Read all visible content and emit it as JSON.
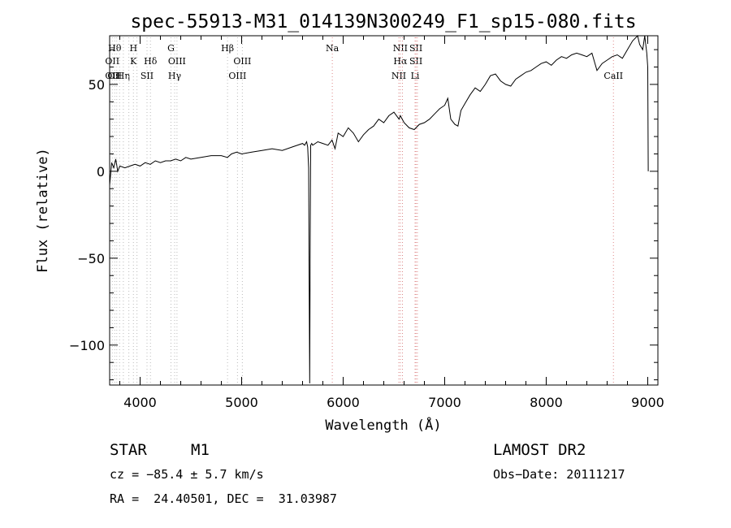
{
  "chart_data": {
    "type": "line",
    "title": "spec-55913-M31_014139N300249_F1_sp15-080.fits",
    "xlabel": "Wavelength (Å)",
    "ylabel": "Flux (relative)",
    "xlim": [
      3700,
      9100
    ],
    "ylim": [
      -123,
      78
    ],
    "x_ticks": [
      4000,
      5000,
      6000,
      7000,
      8000,
      9000
    ],
    "y_ticks": [
      -100,
      -50,
      0,
      50
    ],
    "x_tick_labels": [
      "4000",
      "5000",
      "6000",
      "7000",
      "8000",
      "9000"
    ],
    "y_tick_labels": [
      "−100",
      "−50",
      "0",
      "50"
    ],
    "grid": false,
    "series": [
      {
        "color": "#000000",
        "x": [
          3700,
          3720,
          3740,
          3760,
          3780,
          3800,
          3850,
          3900,
          3950,
          4000,
          4050,
          4100,
          4150,
          4200,
          4250,
          4300,
          4350,
          4400,
          4450,
          4500,
          4600,
          4700,
          4800,
          4860,
          4900,
          4950,
          5000,
          5100,
          5200,
          5300,
          5400,
          5500,
          5600,
          5620,
          5640,
          5650,
          5660,
          5665,
          5670,
          5675,
          5680,
          5690,
          5700,
          5750,
          5800,
          5850,
          5890,
          5920,
          5950,
          6000,
          6050,
          6100,
          6150,
          6200,
          6250,
          6300,
          6350,
          6400,
          6450,
          6500,
          6550,
          6563,
          6600,
          6650,
          6700,
          6750,
          6800,
          6850,
          6900,
          6950,
          7000,
          7030,
          7060,
          7100,
          7130,
          7160,
          7200,
          7250,
          7300,
          7350,
          7400,
          7450,
          7500,
          7550,
          7600,
          7650,
          7700,
          7750,
          7800,
          7850,
          7900,
          7950,
          8000,
          8050,
          8100,
          8150,
          8200,
          8250,
          8300,
          8350,
          8400,
          8450,
          8500,
          8550,
          8600,
          8650,
          8700,
          8750,
          8800,
          8850,
          8900,
          8920,
          8950,
          8970,
          8990,
          9000,
          9005
        ],
        "y": [
          -8,
          5,
          2,
          7,
          0,
          3,
          2,
          3,
          4,
          3,
          5,
          4,
          6,
          5,
          6,
          6,
          7,
          6,
          8,
          7,
          8,
          9,
          9,
          8,
          10,
          11,
          10,
          11,
          12,
          13,
          12,
          14,
          16,
          15,
          17,
          14,
          2,
          -60,
          -122,
          -40,
          15,
          16,
          15,
          17,
          16,
          15,
          18,
          13,
          22,
          20,
          25,
          22,
          17,
          21,
          24,
          26,
          30,
          28,
          32,
          34,
          30,
          32,
          28,
          25,
          24,
          27,
          28,
          30,
          33,
          36,
          38,
          42,
          30,
          27,
          26,
          35,
          39,
          44,
          48,
          46,
          50,
          55,
          56,
          52,
          50,
          49,
          53,
          55,
          57,
          58,
          60,
          62,
          63,
          61,
          64,
          66,
          65,
          67,
          68,
          67,
          66,
          68,
          58,
          62,
          64,
          66,
          67,
          65,
          70,
          75,
          78,
          73,
          70,
          78,
          68,
          60,
          0
        ]
      }
    ],
    "lines": [
      {
        "x": 3726,
        "labels": [
          "",
          "OII",
          "OII"
        ],
        "color": "#bbbbbb"
      },
      {
        "x": 3750,
        "labels": [
          "Hθ",
          "",
          "OII"
        ],
        "color": "#bbbbbb"
      },
      {
        "x": 3770,
        "labels": [
          "",
          "",
          ""
        ],
        "color": "#bbbbbb"
      },
      {
        "x": 3798,
        "labels": [
          "",
          "",
          ""
        ],
        "color": "#bbbbbb"
      },
      {
        "x": 3835,
        "labels": [
          "",
          "",
          "Hη"
        ],
        "color": "#bbbbbb"
      },
      {
        "x": 3889,
        "labels": [
          "",
          "",
          ""
        ],
        "color": "#bbbbbb"
      },
      {
        "x": 3934,
        "labels": [
          "H",
          "K",
          ""
        ],
        "color": "#bbbbbb"
      },
      {
        "x": 3969,
        "labels": [
          "",
          "",
          ""
        ],
        "color": "#bbbbbb"
      },
      {
        "x": 4068,
        "labels": [
          "",
          "",
          "SII"
        ],
        "color": "#bbbbbb"
      },
      {
        "x": 4102,
        "labels": [
          "",
          "Hδ",
          ""
        ],
        "color": "#bbbbbb"
      },
      {
        "x": 4304,
        "labels": [
          "G",
          "",
          ""
        ],
        "color": "#bbbbbb"
      },
      {
        "x": 4340,
        "labels": [
          "",
          "",
          "Hγ"
        ],
        "color": "#bbbbbb"
      },
      {
        "x": 4363,
        "labels": [
          "",
          "OIII",
          ""
        ],
        "color": "#bbbbbb"
      },
      {
        "x": 4861,
        "labels": [
          "Hβ",
          "",
          ""
        ],
        "color": "#bbbbbb"
      },
      {
        "x": 4959,
        "labels": [
          "",
          "",
          "OIII"
        ],
        "color": "#bbbbbb"
      },
      {
        "x": 5007,
        "labels": [
          "",
          "OIII",
          ""
        ],
        "color": "#bbbbbb"
      },
      {
        "x": 5893,
        "labels": [
          "Na",
          "",
          ""
        ],
        "color": "#dd8888"
      },
      {
        "x": 6548,
        "labels": [
          "",
          "",
          "NII"
        ],
        "color": "#dd8888"
      },
      {
        "x": 6563,
        "labels": [
          "NII",
          "Hα",
          ""
        ],
        "color": "#dd8888"
      },
      {
        "x": 6584,
        "labels": [
          "",
          "",
          ""
        ],
        "color": "#dd8888"
      },
      {
        "x": 6708,
        "labels": [
          "",
          "",
          "Li"
        ],
        "color": "#dd8888"
      },
      {
        "x": 6717,
        "labels": [
          "SII",
          "SII",
          ""
        ],
        "color": "#dd8888"
      },
      {
        "x": 6731,
        "labels": [
          "",
          "",
          ""
        ],
        "color": "#dd8888"
      },
      {
        "x": 8662,
        "labels": [
          "",
          "",
          "CaII"
        ],
        "color": "#dd8888"
      }
    ]
  },
  "info": {
    "class_label": "STAR",
    "subclass_label": "M1",
    "survey": "LAMOST DR2",
    "cz": "cz = −85.4 ± 5.7 km/s",
    "obs_date": "Obs−Date: 20111217",
    "coords": "RA =  24.40501, DEC =  31.03987"
  }
}
